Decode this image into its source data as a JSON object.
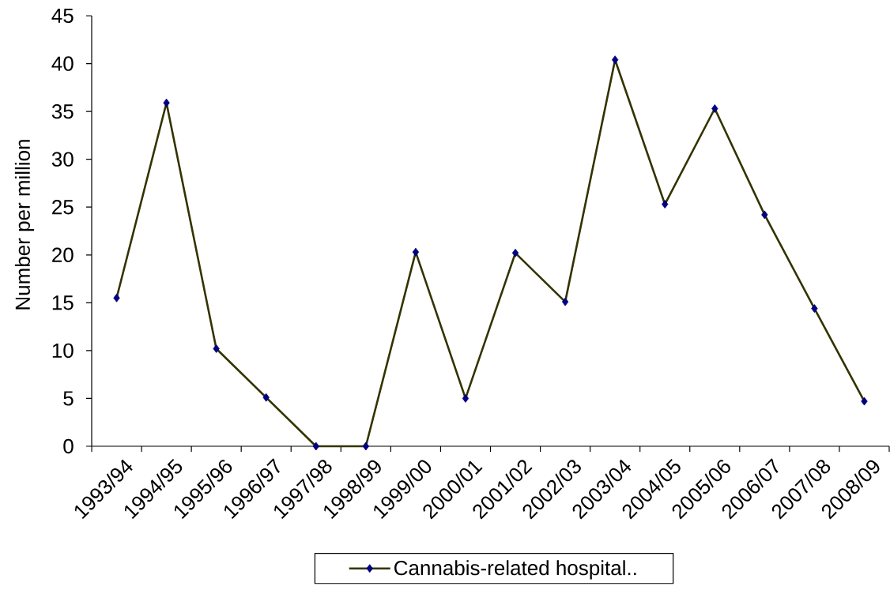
{
  "chart_data": {
    "type": "line",
    "ylabel": "Number per million",
    "categories": [
      "1993/94",
      "1994/95",
      "1995/96",
      "1996/97",
      "1997/98",
      "1998/99",
      "1999/00",
      "2000/01",
      "2001/02",
      "2002/03",
      "2003/04",
      "2004/05",
      "2005/06",
      "2006/07",
      "2007/08",
      "2008/09"
    ],
    "series": [
      {
        "name": "Cannabis-related hospital..",
        "color": "#333300",
        "values": [
          15.5,
          35.9,
          10.2,
          5.1,
          0,
          0,
          20.3,
          5.0,
          20.2,
          15.1,
          40.4,
          25.3,
          35.3,
          24.2,
          14.4,
          4.7
        ]
      }
    ],
    "ylim": [
      0,
      45
    ],
    "yticks": [
      0,
      5,
      10,
      15,
      20,
      25,
      30,
      35,
      40,
      45
    ],
    "legend": "bottom",
    "marker": "diamond",
    "line_style": "solid"
  }
}
